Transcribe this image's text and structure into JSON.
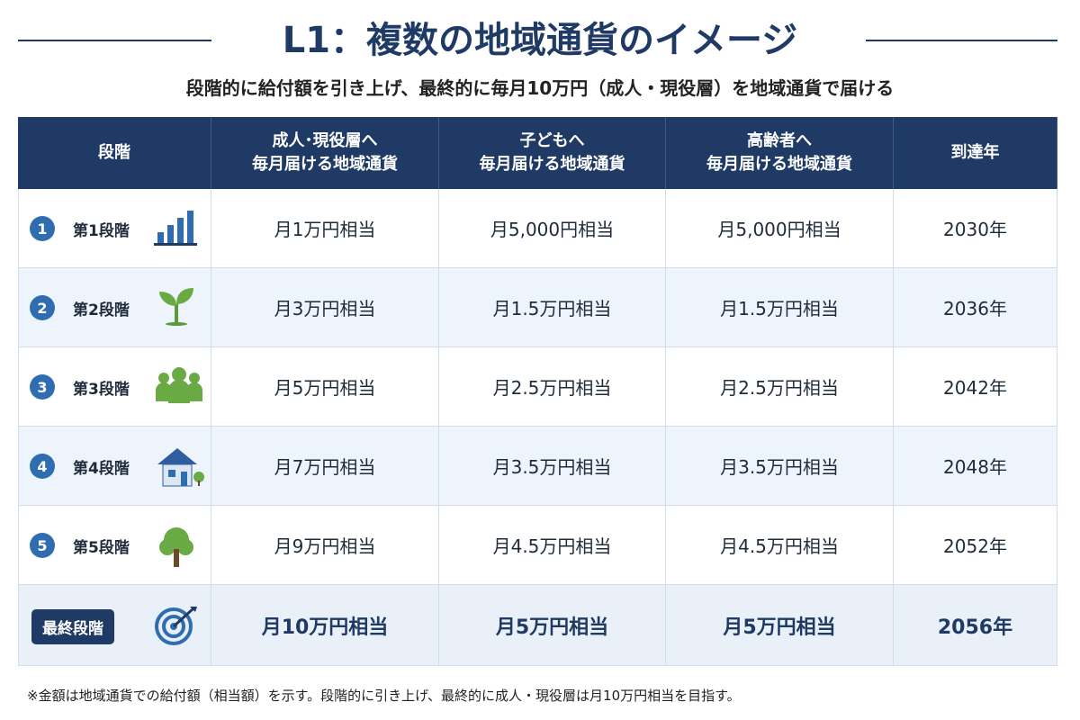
{
  "header": {
    "title": "L1：複数の地域通貨のイメージ",
    "subtitle": "段階的に給付額を引き上げ、最終的に毎月10万円（成人・現役層）を地域通貨で届ける"
  },
  "table": {
    "columns": [
      [
        "段階"
      ],
      [
        "成人･現役層へ",
        "毎月届ける地域通貨"
      ],
      [
        "子どもへ",
        "毎月届ける地域通貨"
      ],
      [
        "高齢者へ",
        "毎月届ける地域通貨"
      ],
      [
        "到達年"
      ]
    ],
    "rows": [
      {
        "number": 1,
        "stage": "第1段階",
        "cells": [
          "月1万円相当",
          "月5,000円相当",
          "月5,000円相当",
          "2030年"
        ]
      },
      {
        "number": 2,
        "stage": "第2段階",
        "cells": [
          "月3万円相当",
          "月1.5万円相当",
          "月1.5万円相当",
          "2036年"
        ]
      },
      {
        "number": 3,
        "stage": "第3段階",
        "cells": [
          "月5万円相当",
          "月2.5万円相当",
          "月2.5万円相当",
          "2042年"
        ]
      },
      {
        "number": 4,
        "stage": "第4段階",
        "cells": [
          "月7万円相当",
          "月3.5万円相当",
          "月3.5万円相当",
          "2048年"
        ]
      },
      {
        "number": 5,
        "stage": "第5段階",
        "cells": [
          "月9万円相当",
          "月4.5万円相当",
          "月4.5万円相当",
          "2052年"
        ]
      }
    ],
    "final": {
      "stage": "最終段階",
      "cells": [
        "月10万円相当",
        "月5万円相当",
        "月5万円相当",
        "2056年"
      ]
    }
  },
  "footnote": "※金額は地域通貨での給付額（相当額）を示す。段階的に引き上げ、最終的に成人・現役層は月10万円相当を目指す。"
}
